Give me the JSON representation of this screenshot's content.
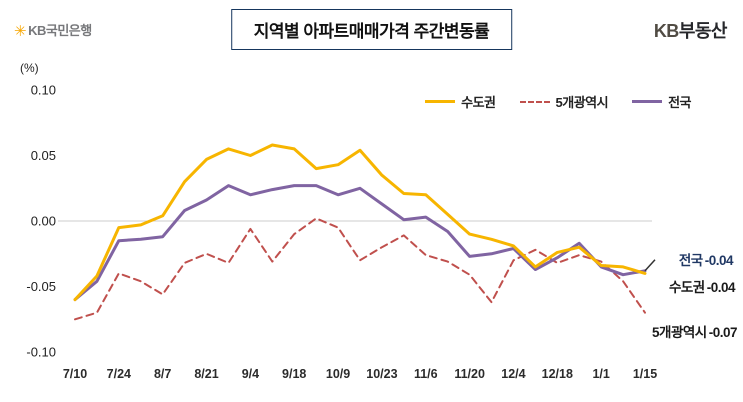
{
  "header": {
    "bank_logo_text": "KB국민은행",
    "title": "지역별 아파트매매가격 주간변동률",
    "brand_kb": "KB",
    "brand_rest": "부동산"
  },
  "axis": {
    "unit_label": "(%)",
    "y_ticks": [
      "0.10",
      "0.05",
      "0.00",
      "-0.05",
      "-0.10"
    ]
  },
  "legend": {
    "items": [
      {
        "label": "수도권",
        "color": "#F7B500",
        "line_style": "solid"
      },
      {
        "label": "5개광역시",
        "color": "#C0504D",
        "line_style": "dashed"
      },
      {
        "label": "전국",
        "color": "#8064A2",
        "line_style": "solid"
      }
    ]
  },
  "annotations": [
    {
      "label": "전국",
      "value": "-0.04",
      "color": "#203864"
    },
    {
      "label": "수도권",
      "value": "-0.04",
      "color": "#1a1a1a"
    },
    {
      "label": "5개광역시",
      "value": "-0.07",
      "color": "#1a1a1a"
    }
  ],
  "chart_data": {
    "type": "line",
    "title": "지역별 아파트매매가격 주간변동률",
    "ylabel": "(%)",
    "ylim": [
      -0.1,
      0.1
    ],
    "grid": "zero-line-only",
    "legend_position": "top-right-inside",
    "x_tick_labels": [
      "7/10",
      "7/24",
      "8/7",
      "8/21",
      "9/4",
      "9/18",
      "10/9",
      "10/23",
      "11/6",
      "11/20",
      "12/4",
      "12/18",
      "1/1",
      "1/15"
    ],
    "x_weekly": [
      "7/10",
      "7/17",
      "7/24",
      "7/31",
      "8/7",
      "8/14",
      "8/21",
      "8/28",
      "9/4",
      "9/11",
      "9/18",
      "9/25",
      "10/9",
      "10/16",
      "10/23",
      "10/30",
      "11/6",
      "11/13",
      "11/20",
      "11/27",
      "12/4",
      "12/11",
      "12/18",
      "12/25",
      "1/1",
      "1/8",
      "1/15"
    ],
    "series": [
      {
        "name": "수도권",
        "color": "#F7B500",
        "style": "solid",
        "width": 3,
        "values": [
          -0.06,
          -0.042,
          -0.005,
          -0.003,
          0.004,
          0.03,
          0.047,
          0.055,
          0.05,
          0.058,
          0.055,
          0.04,
          0.043,
          0.054,
          0.035,
          0.021,
          0.02,
          0.005,
          -0.01,
          -0.014,
          -0.019,
          -0.035,
          -0.024,
          -0.02,
          -0.034,
          -0.035,
          -0.04
        ]
      },
      {
        "name": "5개광역시",
        "color": "#C0504D",
        "style": "dashed",
        "width": 2,
        "values": [
          -0.075,
          -0.07,
          -0.04,
          -0.046,
          -0.056,
          -0.032,
          -0.025,
          -0.032,
          -0.006,
          -0.031,
          -0.01,
          0.002,
          -0.005,
          -0.03,
          -0.02,
          -0.011,
          -0.026,
          -0.031,
          -0.041,
          -0.062,
          -0.03,
          -0.022,
          -0.032,
          -0.026,
          -0.031,
          -0.046,
          -0.07
        ]
      },
      {
        "name": "전국",
        "color": "#8064A2",
        "style": "solid",
        "width": 3,
        "values": [
          -0.06,
          -0.046,
          -0.015,
          -0.014,
          -0.012,
          0.008,
          0.016,
          0.027,
          0.02,
          0.024,
          0.027,
          0.027,
          0.02,
          0.025,
          0.013,
          0.001,
          0.003,
          -0.008,
          -0.027,
          -0.025,
          -0.021,
          -0.037,
          -0.028,
          -0.017,
          -0.035,
          -0.041,
          -0.038
        ]
      }
    ]
  }
}
